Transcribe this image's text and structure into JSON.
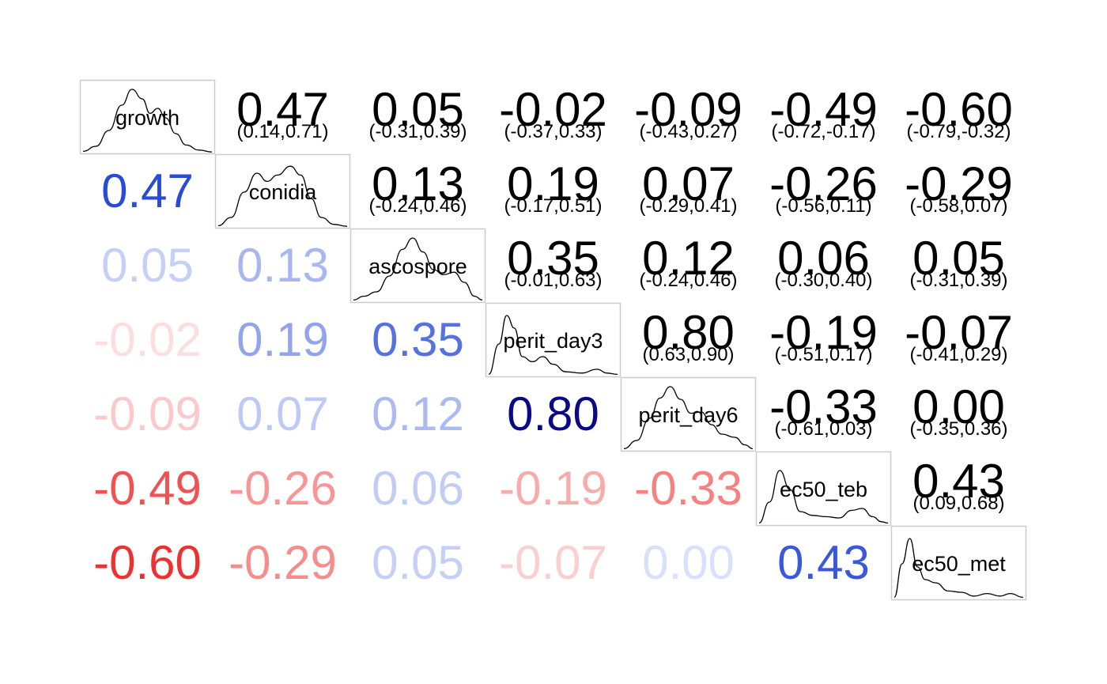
{
  "chart_data": {
    "type": "heatmap",
    "variables": [
      "growth",
      "conidia",
      "ascospore",
      "perit_day3",
      "perit_day6",
      "ec50_teb",
      "ec50_met"
    ],
    "correlations": [
      [
        null,
        0.47,
        0.05,
        -0.02,
        -0.09,
        -0.49,
        -0.6
      ],
      [
        0.47,
        null,
        0.13,
        0.19,
        0.07,
        -0.26,
        -0.29
      ],
      [
        0.05,
        0.13,
        null,
        0.35,
        0.12,
        0.06,
        0.05
      ],
      [
        -0.02,
        0.19,
        0.35,
        null,
        0.8,
        -0.19,
        -0.07
      ],
      [
        -0.09,
        0.07,
        0.12,
        0.8,
        null,
        -0.33,
        0.0
      ],
      [
        -0.49,
        -0.26,
        0.06,
        -0.19,
        -0.33,
        null,
        0.43
      ],
      [
        -0.6,
        -0.29,
        0.05,
        -0.07,
        0.0,
        0.43,
        null
      ]
    ],
    "correlation_labels": [
      [
        null,
        "0.47",
        "0.05",
        "-0.02",
        "-0.09",
        "-0.49",
        "-0.60"
      ],
      [
        "0.47",
        null,
        "0.13",
        "0.19",
        "0.07",
        "-0.26",
        "-0.29"
      ],
      [
        "0.05",
        "0.13",
        null,
        "0.35",
        "0.12",
        "0.06",
        "0.05"
      ],
      [
        "-0.02",
        "0.19",
        "0.35",
        null,
        "0.80",
        "-0.19",
        "-0.07"
      ],
      [
        "-0.09",
        "0.07",
        "0.12",
        "0.80",
        null,
        "-0.33",
        "0.00"
      ],
      [
        "-0.49",
        "-0.26",
        "0.06",
        "-0.19",
        "-0.33",
        null,
        "0.43"
      ],
      [
        "-0.60",
        "-0.29",
        "0.05",
        "-0.07",
        "0.00",
        "0.43",
        null
      ]
    ],
    "confidence_intervals": [
      [
        null,
        "(0.14,0.71)",
        "(-0.31,0.39)",
        "(-0.37,0.33)",
        "(-0.43,0.27)",
        "(-0.72,-0.17)",
        "(-0.79,-0.32)"
      ],
      [
        null,
        null,
        "(-0.24,0.46)",
        "(-0.17,0.51)",
        "(-0.29,0.41)",
        "(-0.56,0.11)",
        "(-0.58,0.07)"
      ],
      [
        null,
        null,
        null,
        "(-0.01,0.63)",
        "(-0.24,0.46)",
        "(-0.30,0.40)",
        "(-0.31,0.39)"
      ],
      [
        null,
        null,
        null,
        null,
        "(0.63,0.90)",
        "(-0.51,0.17)",
        "(-0.41,0.29)"
      ],
      [
        null,
        null,
        null,
        null,
        null,
        "(-0.61,0.03)",
        "(-0.35,0.36)"
      ],
      [
        null,
        null,
        null,
        null,
        null,
        null,
        "(0.09,0.68)"
      ],
      [
        null,
        null,
        null,
        null,
        null,
        null,
        null
      ]
    ],
    "density_curves": [
      [
        [
          0,
          0.02
        ],
        [
          0.1,
          0.1
        ],
        [
          0.2,
          0.35
        ],
        [
          0.3,
          0.75
        ],
        [
          0.38,
          1.0
        ],
        [
          0.46,
          0.85
        ],
        [
          0.52,
          0.62
        ],
        [
          0.58,
          0.7
        ],
        [
          0.64,
          0.55
        ],
        [
          0.72,
          0.3
        ],
        [
          0.8,
          0.12
        ],
        [
          0.9,
          0.04
        ],
        [
          1,
          0.01
        ]
      ],
      [
        [
          0,
          0.02
        ],
        [
          0.1,
          0.15
        ],
        [
          0.2,
          0.55
        ],
        [
          0.3,
          0.85
        ],
        [
          0.38,
          0.72
        ],
        [
          0.46,
          0.82
        ],
        [
          0.56,
          0.96
        ],
        [
          0.64,
          0.82
        ],
        [
          0.72,
          0.45
        ],
        [
          0.8,
          0.15
        ],
        [
          0.9,
          0.04
        ],
        [
          1,
          0.01
        ]
      ],
      [
        [
          0,
          0.02
        ],
        [
          0.08,
          0.08
        ],
        [
          0.18,
          0.15
        ],
        [
          0.28,
          0.4
        ],
        [
          0.38,
          0.82
        ],
        [
          0.46,
          1.0
        ],
        [
          0.54,
          0.78
        ],
        [
          0.62,
          0.5
        ],
        [
          0.7,
          0.42
        ],
        [
          0.78,
          0.46
        ],
        [
          0.86,
          0.3
        ],
        [
          0.94,
          0.08
        ],
        [
          1,
          0.02
        ]
      ],
      [
        [
          0,
          0.02
        ],
        [
          0.08,
          0.5
        ],
        [
          0.14,
          0.95
        ],
        [
          0.2,
          0.75
        ],
        [
          0.26,
          0.3
        ],
        [
          0.34,
          0.22
        ],
        [
          0.42,
          0.3
        ],
        [
          0.5,
          0.18
        ],
        [
          0.6,
          0.06
        ],
        [
          0.72,
          0.04
        ],
        [
          0.84,
          0.1
        ],
        [
          0.92,
          0.04
        ],
        [
          1,
          0.02
        ]
      ],
      [
        [
          0,
          0.02
        ],
        [
          0.1,
          0.15
        ],
        [
          0.2,
          0.5
        ],
        [
          0.28,
          0.82
        ],
        [
          0.36,
          1.0
        ],
        [
          0.44,
          0.8
        ],
        [
          0.52,
          0.58
        ],
        [
          0.6,
          0.6
        ],
        [
          0.68,
          0.4
        ],
        [
          0.76,
          0.25
        ],
        [
          0.86,
          0.2
        ],
        [
          0.94,
          0.08
        ],
        [
          1,
          0.02
        ]
      ],
      [
        [
          0,
          0.02
        ],
        [
          0.08,
          0.35
        ],
        [
          0.16,
          0.85
        ],
        [
          0.24,
          0.55
        ],
        [
          0.32,
          0.2
        ],
        [
          0.42,
          0.14
        ],
        [
          0.52,
          0.12
        ],
        [
          0.62,
          0.1
        ],
        [
          0.72,
          0.22
        ],
        [
          0.8,
          0.25
        ],
        [
          0.88,
          0.12
        ],
        [
          0.95,
          0.04
        ],
        [
          1,
          0.02
        ]
      ],
      [
        [
          0,
          0.02
        ],
        [
          0.06,
          0.55
        ],
        [
          0.12,
          0.95
        ],
        [
          0.18,
          0.5
        ],
        [
          0.24,
          0.3
        ],
        [
          0.32,
          0.25
        ],
        [
          0.42,
          0.12
        ],
        [
          0.52,
          0.1
        ],
        [
          0.62,
          0.04
        ],
        [
          0.72,
          0.08
        ],
        [
          0.82,
          0.04
        ],
        [
          0.9,
          0.08
        ],
        [
          1,
          0.02
        ]
      ]
    ],
    "color_scale": {
      "negative": "#ee3030",
      "zero": "#d8e0fa",
      "positive_mid": "#2a4bd7",
      "positive_high": "#0a0a85"
    }
  }
}
